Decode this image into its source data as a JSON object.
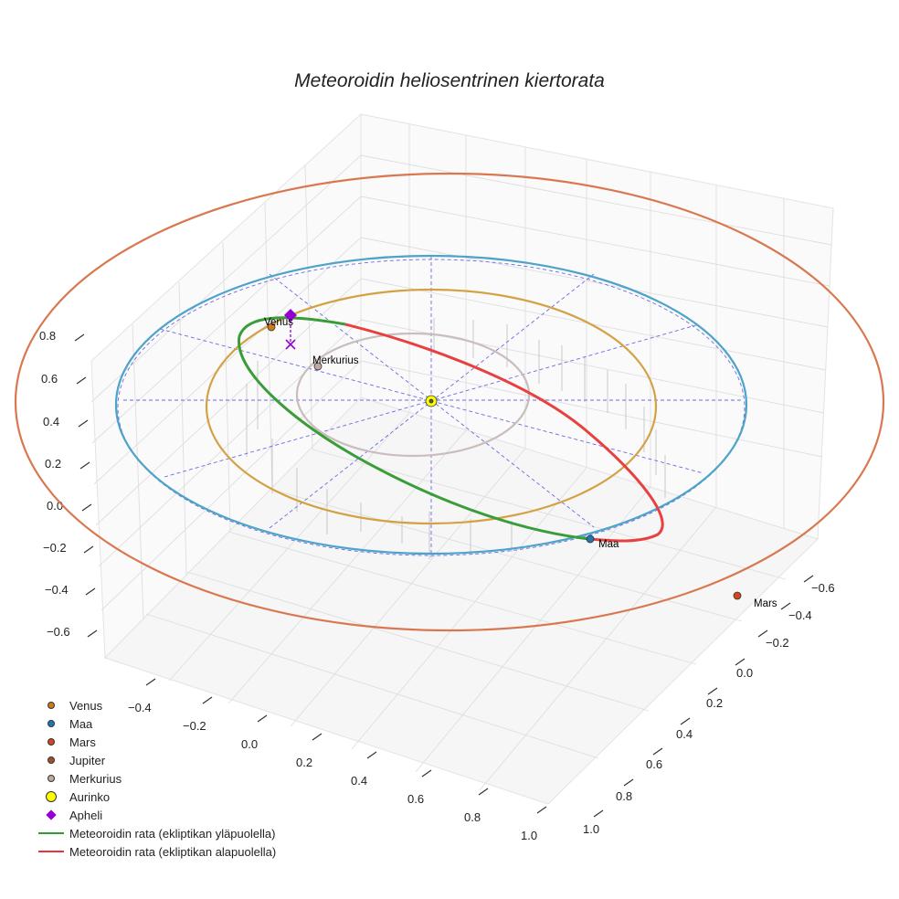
{
  "chart_data": {
    "type": "scatter",
    "title": "Meteoroidin heliosentrinen kiertorata",
    "axes": {
      "x": {
        "ticks": [
          "−0.4",
          "−0.2",
          "0.0",
          "0.2",
          "0.4",
          "0.6",
          "0.8",
          "1.0"
        ]
      },
      "y": {
        "ticks": [
          "−0.6",
          "−0.4",
          "−0.2",
          "0.0",
          "0.2",
          "0.4",
          "0.6",
          "0.8",
          "1.0"
        ]
      },
      "z": {
        "ticks": [
          "−0.6",
          "−0.4",
          "−0.2",
          "0.0",
          "0.2",
          "0.4",
          "0.6",
          "0.8"
        ]
      }
    },
    "grid": true,
    "legend_position": "bottom-left",
    "planet_orbits": [
      {
        "name": "Merkurius",
        "radius_au": 0.39,
        "color": "#c9bdbd"
      },
      {
        "name": "Venus",
        "radius_au": 0.72,
        "color": "#d4a245"
      },
      {
        "name": "Maa",
        "radius_au": 1.0,
        "color": "#4da3c9"
      },
      {
        "name": "Mars",
        "radius_au": 1.52,
        "color": "#d97850"
      }
    ],
    "labels": {
      "venus": "Venus",
      "merkurius": "Merkurius",
      "maa": "Maa",
      "mars": "Mars"
    },
    "legend": [
      {
        "label": "Venus",
        "symbol": "dot",
        "color": "#cc7a1a"
      },
      {
        "label": "Maa",
        "symbol": "dot",
        "color": "#1f77b4"
      },
      {
        "label": "Mars",
        "symbol": "dot",
        "color": "#d4461f"
      },
      {
        "label": "Jupiter",
        "symbol": "dot",
        "color": "#a0522d"
      },
      {
        "label": "Merkurius",
        "symbol": "dot",
        "color": "#bfa9a0"
      },
      {
        "label": "Aurinko",
        "symbol": "big-dot",
        "color": "#ffff00"
      },
      {
        "label": "Apheli",
        "symbol": "diamond",
        "color": "#9400d3"
      },
      {
        "label": "Meteoroidin rata (ekliptikan yläpuolella)",
        "symbol": "line",
        "color": "#2ca02c"
      },
      {
        "label": "Meteoroidin rata (ekliptikan alapuolella)",
        "symbol": "line",
        "color": "#e8353a"
      }
    ],
    "meteoroid_orbit": {
      "above_ecliptic_color": "#3a9d3a",
      "below_ecliptic_color": "#e8403f"
    }
  }
}
